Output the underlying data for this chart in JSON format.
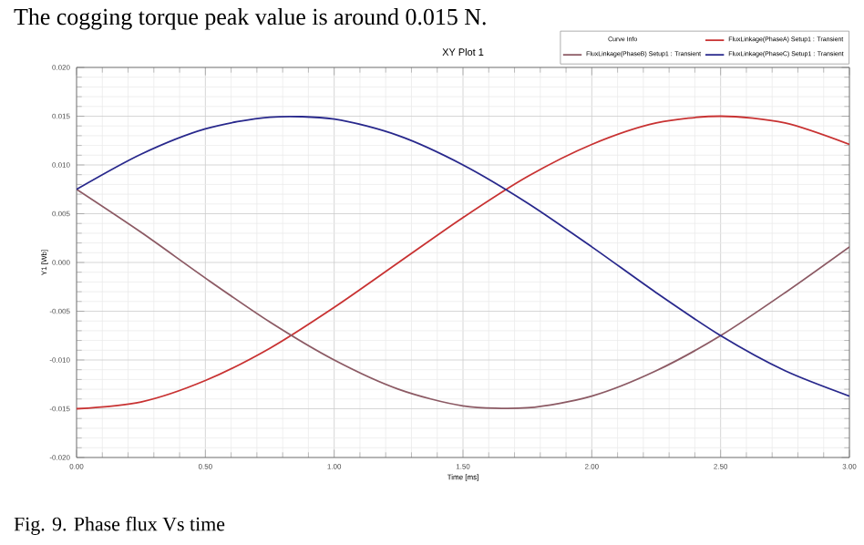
{
  "chart_data": {
    "type": "line",
    "title": "XY Plot 1",
    "xlabel": "Time [ms]",
    "ylabel": "Y1 [Wb]",
    "legend_title": "Curve Info",
    "annotations": [
      "The cogging torque peak value is around 0.015 N.",
      "Fig. 9. Phase flux Vs time"
    ],
    "x": [
      0,
      0.25,
      0.5,
      0.75,
      1.0,
      1.25,
      1.5,
      1.75,
      2.0,
      2.25,
      2.5,
      2.75,
      3.0
    ],
    "series": [
      {
        "name": "FluxLinkage(PhaseA) Setup1 : Transient",
        "color": "#c83232",
        "values": [
          -0.015,
          -0.0143,
          -0.0121,
          -0.0088,
          -0.0046,
          0.0,
          0.0046,
          0.0088,
          0.0121,
          0.0143,
          0.015,
          0.0143,
          0.0121
        ]
      },
      {
        "name": "FluxLinkage(PhaseB) Setup1 : Transient",
        "color": "#8c5a64",
        "values": [
          0.0075,
          0.0031,
          -0.0016,
          -0.0061,
          -0.01,
          -0.013,
          -0.0147,
          -0.0149,
          -0.0137,
          -0.0111,
          -0.0075,
          -0.0031,
          0.0016
        ]
      },
      {
        "name": "FluxLinkage(PhaseC) Setup1 : Transient",
        "color": "#28288c",
        "values": [
          0.0075,
          0.0111,
          0.0137,
          0.0149,
          0.0147,
          0.013,
          0.01,
          0.0061,
          0.0016,
          -0.0031,
          -0.0075,
          -0.0111,
          -0.0137
        ]
      }
    ],
    "xlim": [
      0,
      3.0
    ],
    "xticks": [
      {
        "value": 0,
        "label": "0.00"
      },
      {
        "value": 0.5,
        "label": "0.50"
      },
      {
        "value": 1.0,
        "label": "1.00"
      },
      {
        "value": 1.5,
        "label": "1.50"
      },
      {
        "value": 2.0,
        "label": "2.00"
      },
      {
        "value": 2.5,
        "label": "2.50"
      },
      {
        "value": 3.0,
        "label": "3.00"
      }
    ],
    "ylim": [
      -0.02,
      0.02
    ],
    "yticks": [
      {
        "value": -0.02,
        "label": "-0.020"
      },
      {
        "value": -0.015,
        "label": "-0.015"
      },
      {
        "value": -0.01,
        "label": "-0.010"
      },
      {
        "value": -0.005,
        "label": "-0.005"
      },
      {
        "value": 0,
        "label": "0.000"
      },
      {
        "value": 0.005,
        "label": "0.005"
      },
      {
        "value": 0.01,
        "label": "0.010"
      },
      {
        "value": 0.015,
        "label": "0.015"
      },
      {
        "value": 0.02,
        "label": "0.020"
      }
    ],
    "grid": true,
    "legend": "top right",
    "line_style": "solid",
    "marker": "none"
  }
}
